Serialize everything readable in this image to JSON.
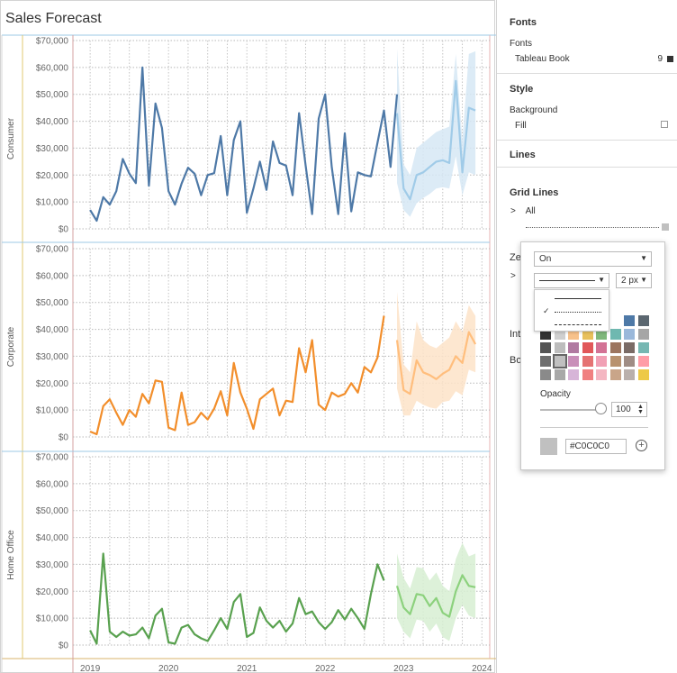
{
  "sheet": {
    "title": "Sales Forecast"
  },
  "chart_data": {
    "type": "line",
    "title": "Sales Forecast",
    "panels": [
      "Consumer",
      "Corporate",
      "Home Office"
    ],
    "y_ticks": [
      "$0",
      "$10,000",
      "$20,000",
      "$30,000",
      "$40,000",
      "$50,000",
      "$60,000",
      "$70,000"
    ],
    "ylim": [
      0,
      70000
    ],
    "x_ticks": [
      "2019",
      "2020",
      "2021",
      "2022",
      "2023",
      "2024"
    ],
    "x_tick_values": [
      2019,
      2020,
      2021,
      2022,
      2023,
      2024
    ],
    "xlim": [
      2018.78,
      2024.1
    ],
    "colors": {
      "Consumer": {
        "actual": "#4e79a7",
        "forecast": "#a0cbe8",
        "band": "#d6e8f5"
      },
      "Corporate": {
        "actual": "#f28e2b",
        "forecast": "#ffbe7d",
        "band": "#fde3c8"
      },
      "Home Office": {
        "actual": "#59a14f",
        "forecast": "#8cd17d",
        "band": "#d7efd2"
      }
    },
    "series": [
      {
        "name": "Consumer",
        "actual_start": 2019.0,
        "actual": [
          7000,
          3000,
          11800,
          9000,
          14000,
          26000,
          20500,
          17000,
          60000,
          16000,
          46600,
          37500,
          14000,
          9000,
          16800,
          22700,
          20500,
          12500,
          20000,
          20700,
          34500,
          12500,
          33000,
          40000,
          6000,
          15000,
          25000,
          14500,
          32500,
          24500,
          23500,
          12500,
          43000,
          23500,
          5500,
          41000,
          50000,
          23000,
          5500,
          35500,
          6500,
          21000,
          20000,
          19500,
          32000,
          44000,
          23000,
          50000
        ],
        "forecast_start": 2022.917,
        "forecast": [
          43000,
          15000,
          11000,
          20000,
          21000,
          23000,
          25000,
          25500,
          24500,
          55000,
          21000,
          45000,
          44000
        ],
        "forecast_low": [
          17000,
          7000,
          4500,
          9500,
          11500,
          13000,
          15000,
          15500,
          15000,
          27000,
          12500,
          21000,
          20000
        ],
        "forecast_high": [
          67000,
          24000,
          20000,
          30000,
          32000,
          34000,
          36000,
          37000,
          38000,
          65000,
          33000,
          65000,
          66000
        ]
      },
      {
        "name": "Corporate",
        "actual_start": 2019.0,
        "actual": [
          2000,
          1000,
          11500,
          14000,
          9000,
          4500,
          10000,
          7500,
          16000,
          12500,
          21000,
          20500,
          3500,
          2500,
          16500,
          4500,
          5500,
          9000,
          6500,
          10500,
          17000,
          8000,
          27500,
          16500,
          10500,
          3000,
          14000,
          16000,
          18000,
          8000,
          13500,
          13000,
          33000,
          24000,
          36000,
          12000,
          10000,
          16500,
          15000,
          16000,
          20000,
          16500,
          26000,
          24000,
          29500,
          45000
        ],
        "forecast_start": 2022.917,
        "forecast": [
          36000,
          17500,
          16000,
          28500,
          24000,
          23000,
          21500,
          23500,
          25000,
          30000,
          27500,
          39000,
          34500
        ],
        "forecast_low": [
          18000,
          8000,
          8000,
          13500,
          12000,
          11000,
          10500,
          13000,
          13500,
          17000,
          15500,
          25000,
          24000
        ],
        "forecast_high": [
          54000,
          27000,
          24000,
          43000,
          36000,
          34000,
          33000,
          35000,
          37000,
          43000,
          39000,
          49000,
          45000
        ]
      },
      {
        "name": "Home Office",
        "actual_start": 2019.0,
        "actual": [
          5500,
          500,
          34000,
          5000,
          3000,
          5000,
          3500,
          4000,
          6500,
          2500,
          11000,
          13500,
          1000,
          500,
          6500,
          7500,
          4000,
          2500,
          1500,
          5500,
          10000,
          6000,
          16000,
          19000,
          3000,
          4500,
          14000,
          9000,
          6500,
          9000,
          5000,
          8000,
          17500,
          11500,
          12500,
          8500,
          6000,
          8500,
          13000,
          9500,
          13500,
          10000,
          6000,
          19000,
          30000,
          24000
        ],
        "forecast_start": 2022.917,
        "forecast": [
          22000,
          14000,
          11500,
          19000,
          18500,
          14500,
          17500,
          12000,
          10500,
          20000,
          26000,
          22000,
          21500
        ],
        "forecast_low": [
          10000,
          5000,
          2500,
          9500,
          9000,
          5000,
          8000,
          3000,
          1500,
          10000,
          15000,
          11000,
          10000
        ],
        "forecast_high": [
          34000,
          25000,
          21000,
          29000,
          28500,
          24000,
          27000,
          22000,
          20000,
          32000,
          38000,
          33000,
          34000
        ]
      }
    ]
  },
  "pane": {
    "fonts_heading": "Fonts",
    "fonts_label": "Fonts",
    "font_value": "Tableau Book",
    "font_size": "9",
    "style_heading": "Style",
    "background_label": "Background",
    "fill_label": "Fill",
    "lines_heading": "Lines",
    "grid_lines_label": "Grid Lines",
    "grid_all_label": "All",
    "zero_label_partial": "Ze",
    "interval_label_partial": "Int",
    "borders_label_partial": "Bo",
    "chevron": ">"
  },
  "popup": {
    "on_off_value": "On",
    "width_value": "2 px",
    "opacity_label": "Opacity",
    "opacity_value": "100",
    "hex_value": "#C0C0C0",
    "add_symbol": "+",
    "check_mark": "✓",
    "swatch_colors": [
      [
        "#ffffff",
        "#ffffff",
        "#ffffff",
        "#ffffff",
        "#ffffff",
        "#ffffff",
        "#4e79a7",
        "#5b6770"
      ],
      [
        "#333333",
        "#cfcfcf",
        "#f7c18a",
        "#e8c05c",
        "#7fb77b",
        "#6fb8b0",
        "#9ab8da",
        "#a6a6a6"
      ],
      [
        "#555555",
        "#bdbdbd",
        "#b07aa1",
        "#e15759",
        "#d37295",
        "#9c755f",
        "#7a6b66",
        "#76b7b2"
      ],
      [
        "#6e6e6e",
        "#c0c0c0",
        "#c98fb9",
        "#e57373",
        "#f1a0b5",
        "#b8926f",
        "#a08d85",
        "#ff9da7"
      ],
      [
        "#8a8a8a",
        "#a8a8a8",
        "#d7b5d8",
        "#f08080",
        "#f4b6c2",
        "#c9a589",
        "#bab0ac",
        "#edc948"
      ]
    ]
  }
}
